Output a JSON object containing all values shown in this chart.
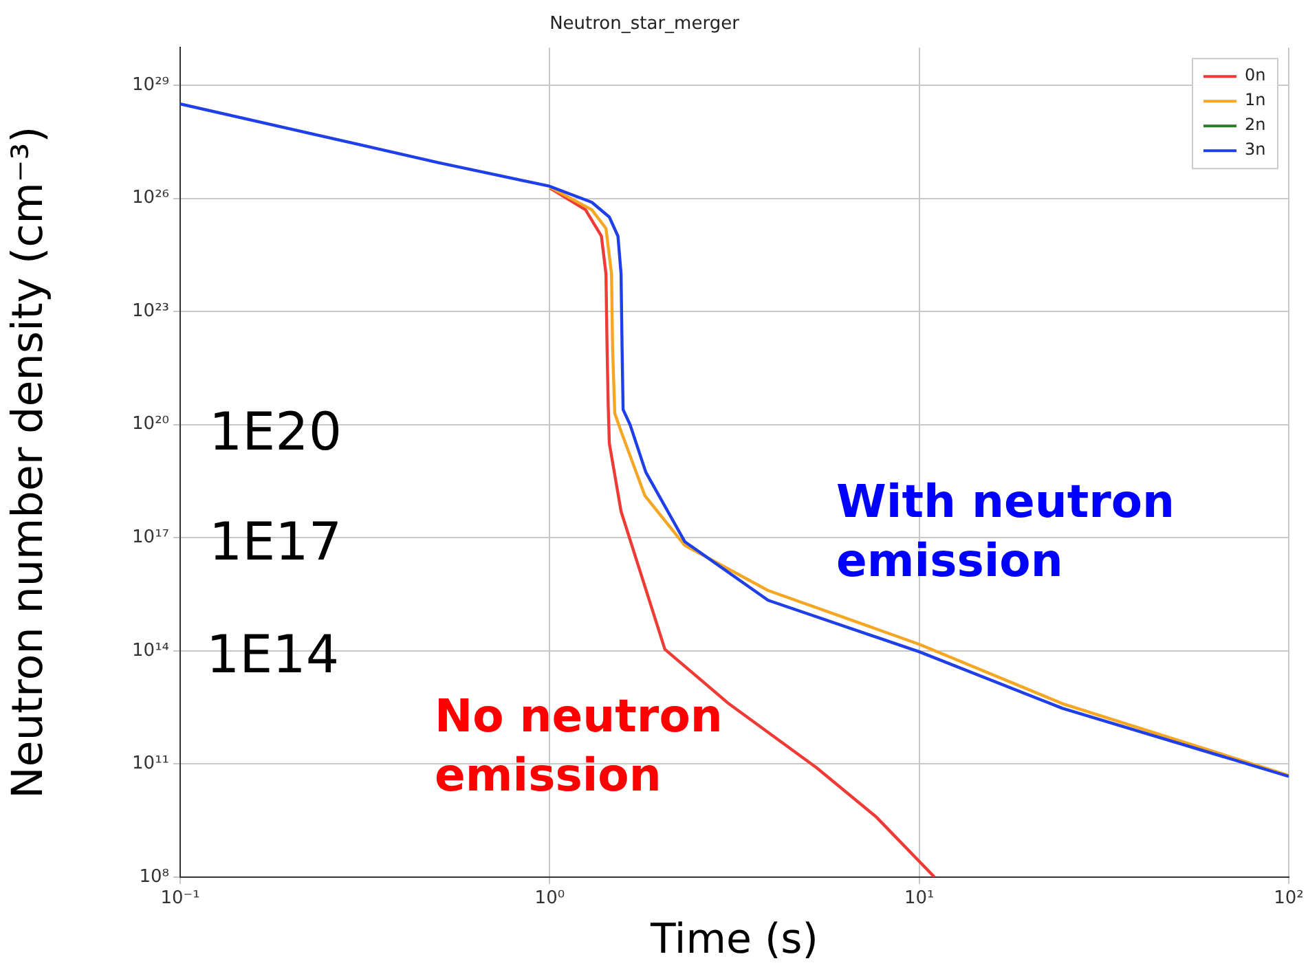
{
  "chart_data": {
    "type": "line",
    "title": "Neutron_star_merger",
    "xlabel": "Time (s)",
    "ylabel": "Neutron number density (cm⁻³)",
    "log": "xy",
    "grid": true,
    "legend": "top right",
    "marker": "none",
    "line_style": "solid",
    "xlim": [
      0.1,
      100
    ],
    "xticks": [
      {
        "value": 0.1,
        "label": "10⁻¹"
      },
      {
        "value": 1,
        "label": "10⁰"
      },
      {
        "value": 10,
        "label": "10¹"
      },
      {
        "value": 100,
        "label": "10²"
      }
    ],
    "ylim": [
      100000000.0,
      1e+30
    ],
    "yticks": [
      {
        "value": 100000000.0,
        "label": "10⁸"
      },
      {
        "value": 100000000000.0,
        "label": "10¹¹"
      },
      {
        "value": 100000000000000.0,
        "label": "10¹⁴"
      },
      {
        "value": 1e+17,
        "label": "10¹⁷"
      },
      {
        "value": 1e+20,
        "label": "10²⁰"
      },
      {
        "value": 1e+23,
        "label": "10²³"
      },
      {
        "value": 1e+26,
        "label": "10²⁶"
      },
      {
        "value": 1e+29,
        "label": "10²⁹"
      }
    ],
    "series": [
      {
        "name": "0n",
        "color": "#ee3b36",
        "x": [
          1.0,
          1.25,
          1.38,
          1.42,
          1.43,
          1.44,
          1.45,
          1.56,
          2.05,
          3.05,
          5.28,
          7.64,
          11
        ],
        "values": [
          1.9e+26,
          5e+25,
          1e+25,
          1e+24,
          1e+22,
          3.2e+20,
          3.2e+19,
          5e+17,
          110000000000000.0,
          4000000000000.0,
          79000000000.0,
          4000000000.0,
          100000000.0
        ]
      },
      {
        "name": "1n",
        "color": "#f5a623",
        "x": [
          1.0,
          1.3,
          1.42,
          1.47,
          1.48,
          1.5,
          1.55,
          1.81,
          2.32,
          3.9,
          10,
          24.4,
          100
        ],
        "values": [
          2e+26,
          5e+25,
          1.6e+25,
          1e+24,
          1e+22,
          2e+20,
          7.9e+19,
          1.3e+18,
          6.3e+16,
          4000000000000000.0,
          150000000000000.0,
          4000000000000.0,
          50000000000.0
        ]
      },
      {
        "name": "2n",
        "color": "#2a7d2a"
      },
      {
        "name": "3n",
        "color": "#1f3fe8",
        "x": [
          0.1,
          0.5,
          1.0,
          1.3,
          1.45,
          1.53,
          1.56,
          1.57,
          1.58,
          1.65,
          1.82,
          2.32,
          3.9,
          10,
          24.4,
          100
        ],
        "values": [
          3.2e+28,
          8.9e+26,
          2.1e+26,
          7.9e+25,
          3.2e+25,
          1e+25,
          1e+24,
          1e+22,
          2.5e+20,
          1e+20,
          5.5e+18,
          7.9e+16,
          2200000000000000.0,
          95000000000000.0,
          3000000000000.0,
          47000000000.0
        ]
      }
    ],
    "annotations": [
      "1E20",
      "1E17",
      "1E14",
      "No neutron emission",
      "With neutron emission"
    ]
  }
}
